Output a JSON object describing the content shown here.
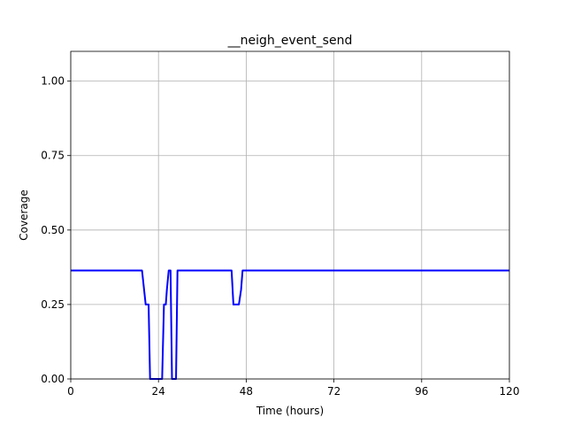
{
  "chart_data": {
    "type": "line",
    "title": "__neigh_event_send",
    "xlabel": "Time (hours)",
    "ylabel": "Coverage",
    "xlim": [
      0,
      120
    ],
    "ylim": [
      0,
      1.1
    ],
    "xticks": [
      0,
      24,
      48,
      72,
      96,
      120
    ],
    "xtick_labels": [
      "0",
      "24",
      "48",
      "72",
      "96",
      "120"
    ],
    "yticks": [
      0.0,
      0.25,
      0.5,
      0.75,
      1.0
    ],
    "ytick_labels": [
      "0.00",
      "0.25",
      "0.50",
      "0.75",
      "1.00"
    ],
    "grid": true,
    "legend": null,
    "series": [
      {
        "color": "#0000ff",
        "x": [
          0,
          19.5,
          20.5,
          21.3,
          21.7,
          24.5,
          25,
          25.5,
          26,
          26.3,
          26.8,
          27.3,
          27.7,
          28,
          28.4,
          28.8,
          29.2,
          44,
          44.5,
          46,
          46.6,
          47,
          120
        ],
        "y": [
          0.364,
          0.364,
          0.25,
          0.25,
          0,
          0,
          0,
          0.25,
          0.25,
          0.3,
          0.364,
          0.364,
          0,
          0,
          0,
          0,
          0.364,
          0.364,
          0.25,
          0.25,
          0.3,
          0.364,
          0.364
        ]
      }
    ]
  }
}
